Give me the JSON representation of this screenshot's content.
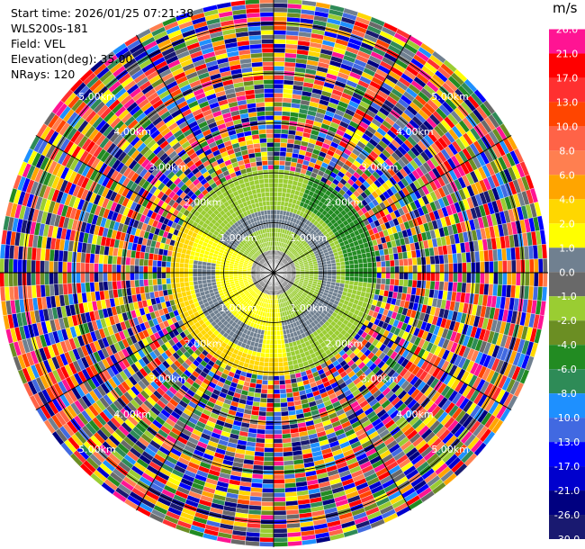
{
  "header": {
    "start_time": "Start time: 2026/01/25 07:21:38",
    "instrument": "WLS200s-181",
    "field": "Field: VEL",
    "elevation": "Elevation(deg): 35.00",
    "nrays": "NRays: 120"
  },
  "colorbar": {
    "unit": "m/s",
    "ticks": [
      "26.0",
      "21.0",
      "17.0",
      "13.0",
      "10.0",
      "8.0",
      "6.0",
      "4.0",
      "2.0",
      "1.0",
      "0.0",
      "-1.0",
      "-2.0",
      "-4.0",
      "-6.0",
      "-8.0",
      "-10.0",
      "-13.0",
      "-17.0",
      "-21.0",
      "-26.0",
      "-30.0"
    ],
    "colors": [
      "#ff1493",
      "#ff0000",
      "#ff3030",
      "#ff4500",
      "#ff6347",
      "#ff7f50",
      "#ffa500",
      "#ffd700",
      "#ffff00",
      "#708090",
      "#696969",
      "#9acd32",
      "#6b8e23",
      "#228b22",
      "#2e8b57",
      "#1e90ff",
      "#4169e1",
      "#0000ff",
      "#0000cd",
      "#000080",
      "#191970"
    ]
  },
  "chart_data": {
    "type": "heatmap",
    "title": "",
    "field": "VEL",
    "units": "m/s",
    "nrays": 120,
    "elevation_deg": 35.0,
    "colorbar_range": [
      -30,
      30
    ],
    "rings": [
      {
        "label": "1.00km",
        "radius_km": 1.0
      },
      {
        "label": "2.00km",
        "radius_km": 2.0
      },
      {
        "label": "3.00km",
        "radius_km": 3.0
      },
      {
        "label": "4.00km",
        "radius_km": 4.0
      },
      {
        "label": "5.00km",
        "radius_km": 5.0
      }
    ],
    "max_range_km": 5.5,
    "coherent_range_km": 2.1,
    "spokes_deg": [
      0,
      30,
      60,
      90,
      120,
      150,
      180,
      210,
      240,
      270,
      300,
      330
    ],
    "ring_label_positions_deg": [
      45,
      135,
      225,
      315
    ]
  }
}
